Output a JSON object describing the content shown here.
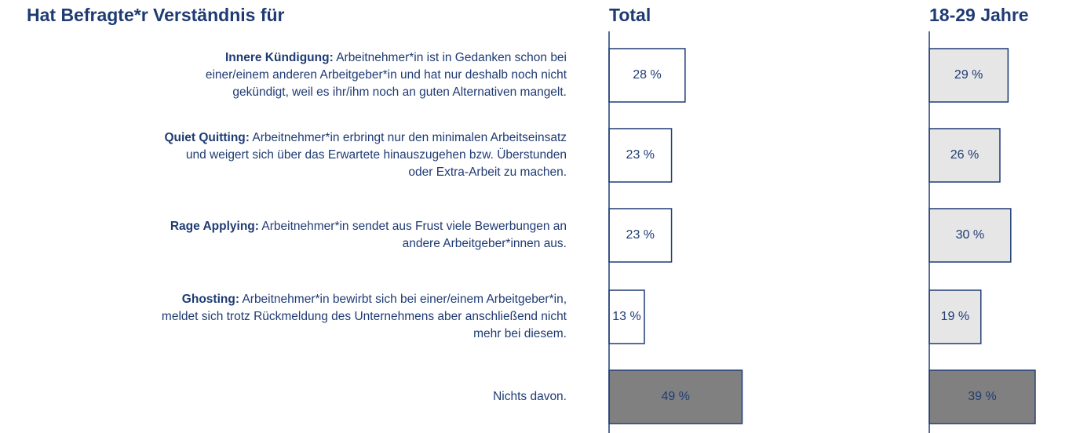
{
  "title": "Hat Befragte*r Verständnis für",
  "rows": [
    {
      "term": "Innere Kündigung:",
      "lines": [
        "Arbeitnehmer*in ist in Gedanken schon bei",
        "einer/einem anderen Arbeitgeber*in und hat nur deshalb noch nicht",
        "gekündigt, weil es ihr/ihm noch an guten Alternativen mangelt."
      ]
    },
    {
      "term": "Quiet Quitting:",
      "lines": [
        "Arbeitnehmer*in erbringt nur den minimalen Arbeitseinsatz",
        "und weigert sich über das Erwartete hinauszugehen bzw. Überstunden",
        "oder Extra-Arbeit zu machen."
      ]
    },
    {
      "term": "Rage Applying:",
      "lines": [
        "Arbeitnehmer*in sendet aus Frust viele Bewerbungen an",
        "andere Arbeitgeber*innen aus."
      ]
    },
    {
      "term": "Ghosting:",
      "lines": [
        "Arbeitnehmer*in bewirbt sich bei einer/einem Arbeitgeber*in,",
        "meldet sich trotz Rückmeldung des Unternehmens aber anschließend nicht",
        "mehr bei diesem."
      ]
    },
    {
      "lines": [
        "Nichts davon."
      ]
    }
  ],
  "chart_data": [
    {
      "type": "bar",
      "title": "Total",
      "values": [
        28,
        23,
        23,
        13,
        49
      ],
      "value_labels": [
        "28 %",
        "23 %",
        "23 %",
        "13 %",
        "49 %"
      ],
      "colors": [
        "#ffffff",
        "#ffffff",
        "#ffffff",
        "#ffffff",
        "#808080"
      ]
    },
    {
      "type": "bar",
      "title": "18-29 Jahre",
      "values": [
        29,
        26,
        30,
        19,
        39
      ],
      "value_labels": [
        "29 %",
        "26 %",
        "30 %",
        "19 %",
        "39 %"
      ],
      "colors": [
        "#e6e6e6",
        "#e6e6e6",
        "#e6e6e6",
        "#e6e6e6",
        "#808080"
      ]
    }
  ]
}
